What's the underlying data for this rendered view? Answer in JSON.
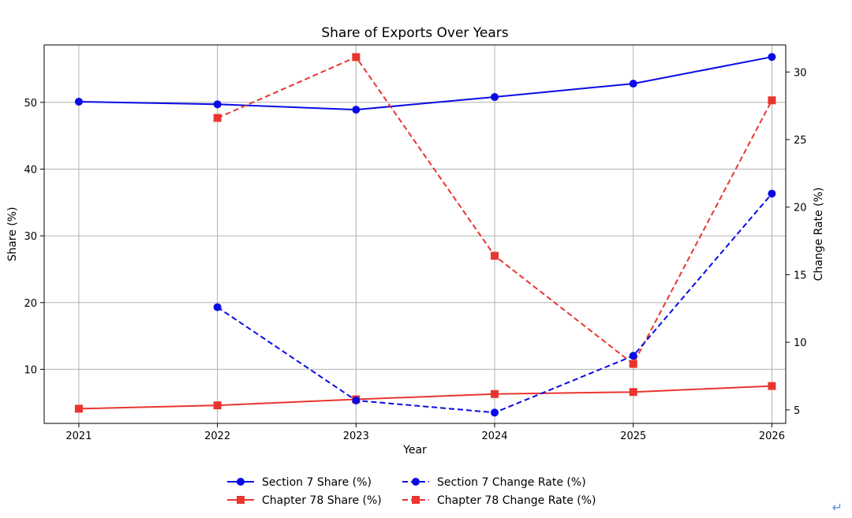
{
  "chart_data": {
    "type": "line",
    "title": "Share of Exports Over Years",
    "xlabel": "Year",
    "ylabel_left": "Share (%)",
    "ylabel_right": "Change Rate (%)",
    "x": [
      2021,
      2022,
      2023,
      2024,
      2025,
      2026
    ],
    "xlim": [
      2020.75,
      2026.1
    ],
    "ylim_left": [
      1.9,
      58.6
    ],
    "ylim_right": [
      4.0,
      32.0
    ],
    "left_ticks": [
      10,
      20,
      30,
      40,
      50
    ],
    "right_ticks": [
      5,
      10,
      15,
      20,
      25,
      30
    ],
    "grid": true,
    "legend_position": "bottom-center",
    "series": [
      {
        "name": "Section 7 Share (%)",
        "axis": "left",
        "style": "solid",
        "marker": "circle",
        "color": "#0a0ae6",
        "values": [
          50.1,
          49.7,
          48.9,
          50.8,
          52.8,
          56.8
        ]
      },
      {
        "name": "Chapter 78 Share (%)",
        "axis": "left",
        "style": "solid",
        "marker": "square",
        "color": "#e8362f",
        "values": [
          4.1,
          4.6,
          5.5,
          6.3,
          6.6,
          7.5
        ]
      },
      {
        "name": "Section 7 Change Rate (%)",
        "axis": "right",
        "style": "dashed",
        "marker": "circle",
        "color": "#0a0ae6",
        "values": [
          null,
          12.6,
          5.7,
          4.8,
          9.0,
          21.0
        ]
      },
      {
        "name": "Chapter 78 Change Rate (%)",
        "axis": "right",
        "style": "dashed",
        "marker": "square",
        "color": "#e8362f",
        "values": [
          null,
          26.6,
          31.1,
          16.4,
          8.4,
          27.9
        ]
      }
    ]
  },
  "corner_glyph": "↵"
}
